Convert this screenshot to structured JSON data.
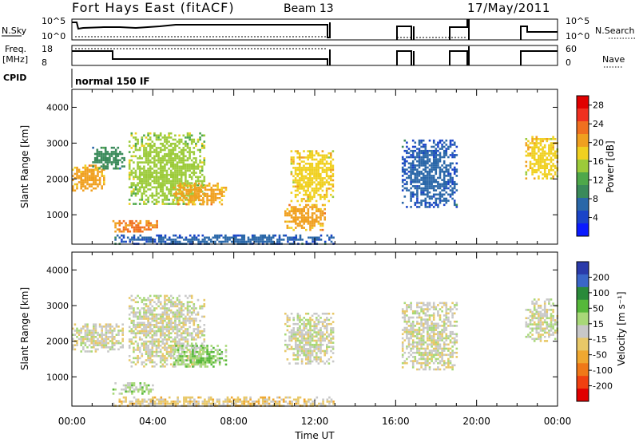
{
  "header": {
    "station": "Fort Hays East (fitACF)",
    "beam": "Beam 13",
    "date": "17/May/2011"
  },
  "param_panels": {
    "nsky_label": "N.Sky",
    "nsky_ticks": [
      "10^5",
      "10^0"
    ],
    "nsearch_label": "N.Search",
    "nsearch_ticks": [
      "10^5",
      "10^0"
    ],
    "freq_label": "Freq.",
    "freq_unit": "[MHz]",
    "freq_ticks": [
      "18",
      "8"
    ],
    "nave_label": "Nave",
    "nave_ticks": [
      "60",
      "0"
    ],
    "cpid_label": "CPID",
    "cpid_value": "normal 150 IF"
  },
  "colors": {
    "power_scale": [
      "#0a1aff",
      "#1a44c8",
      "#2a67a8",
      "#3a8a5a",
      "#4ea84a",
      "#9ccb3a",
      "#f0d020",
      "#f0a020",
      "#f07020",
      "#f03020",
      "#e00000"
    ],
    "velocity_scale": [
      "#2a3aaa",
      "#3a66c8",
      "#2a8a3a",
      "#56b83a",
      "#a8d878",
      "#c8c8c8",
      "#e8c868",
      "#f0a830",
      "#f07818",
      "#f04010",
      "#e00000"
    ]
  },
  "chart_data": [
    {
      "type": "heatmap",
      "title": "Fort Hays East (fitACF)",
      "subtitle": "Beam 13",
      "ylabel": "Slant Range [km]",
      "ylim": [
        180,
        4500
      ],
      "yticks": [
        "1000",
        "2000",
        "3000",
        "4000"
      ],
      "xlim": [
        "00:00",
        "24:00"
      ],
      "colorbar": {
        "label": "Power [dB]",
        "ticks": [
          "4",
          "8",
          "12",
          "16",
          "20",
          "24",
          "28"
        ],
        "range": [
          0,
          30
        ]
      },
      "echo_regions": [
        {
          "t_start": 0.0,
          "t_end": 1.6,
          "range_start": 1700,
          "range_end": 2400,
          "level": 20
        },
        {
          "t_start": 1.0,
          "t_end": 2.6,
          "range_start": 2300,
          "range_end": 2900,
          "level": 10
        },
        {
          "t_start": 2.0,
          "t_end": 4.2,
          "range_start": 550,
          "range_end": 850,
          "level": 22
        },
        {
          "t_start": 2.8,
          "t_end": 6.5,
          "range_start": 1300,
          "range_end": 3300,
          "level": 15
        },
        {
          "t_start": 5.0,
          "t_end": 7.6,
          "range_start": 1300,
          "range_end": 1900,
          "level": 20
        },
        {
          "t_start": 10.8,
          "t_end": 12.9,
          "range_start": 1400,
          "range_end": 2800,
          "level": 18
        },
        {
          "t_start": 10.5,
          "t_end": 12.5,
          "range_start": 600,
          "range_end": 1300,
          "level": 20
        },
        {
          "t_start": 2.0,
          "t_end": 12.9,
          "range_start": 200,
          "range_end": 450,
          "level": 6
        },
        {
          "t_start": 16.3,
          "t_end": 19.0,
          "range_start": 1200,
          "range_end": 3100,
          "level": 6
        },
        {
          "t_start": 22.4,
          "t_end": 24.0,
          "range_start": 2000,
          "range_end": 3200,
          "level": 18
        }
      ],
      "data_gaps": [
        [
          "13:00",
          "16:15"
        ],
        [
          "19:00",
          "22:15"
        ]
      ]
    },
    {
      "type": "heatmap",
      "ylabel": "Slant Range [km]",
      "xlabel": "Time UT",
      "ylim": [
        180,
        4500
      ],
      "yticks": [
        "1000",
        "2000",
        "3000",
        "4000"
      ],
      "xticks": [
        "00:00",
        "04:00",
        "08:00",
        "12:00",
        "16:00",
        "20:00",
        "00:00"
      ],
      "colorbar": {
        "label": "Velocity [m s⁻¹]",
        "ticks": [
          "200",
          "100",
          "50",
          "15",
          "-15",
          "-50",
          "-100",
          "-200"
        ],
        "range": [
          -250,
          250
        ]
      },
      "echo_regions": [
        {
          "t_start": 0.0,
          "t_end": 2.5,
          "range_start": 1700,
          "range_end": 2500,
          "level": 0
        },
        {
          "t_start": 2.0,
          "t_end": 4.0,
          "range_start": 550,
          "range_end": 850,
          "level": 40
        },
        {
          "t_start": 2.8,
          "t_end": 6.5,
          "range_start": 1300,
          "range_end": 3300,
          "level": 0
        },
        {
          "t_start": 5.0,
          "t_end": 7.6,
          "range_start": 1300,
          "range_end": 1900,
          "level": 60
        },
        {
          "t_start": 10.5,
          "t_end": 12.9,
          "range_start": 1400,
          "range_end": 2800,
          "level": 0
        },
        {
          "t_start": 2.0,
          "t_end": 12.9,
          "range_start": 200,
          "range_end": 450,
          "level": -40
        },
        {
          "t_start": 16.3,
          "t_end": 19.0,
          "range_start": 1200,
          "range_end": 3100,
          "level": 0
        },
        {
          "t_start": 22.4,
          "t_end": 24.0,
          "range_start": 2000,
          "range_end": 3200,
          "level": 0
        }
      ],
      "data_gaps": [
        [
          "13:00",
          "16:15"
        ],
        [
          "19:00",
          "22:15"
        ]
      ]
    }
  ]
}
